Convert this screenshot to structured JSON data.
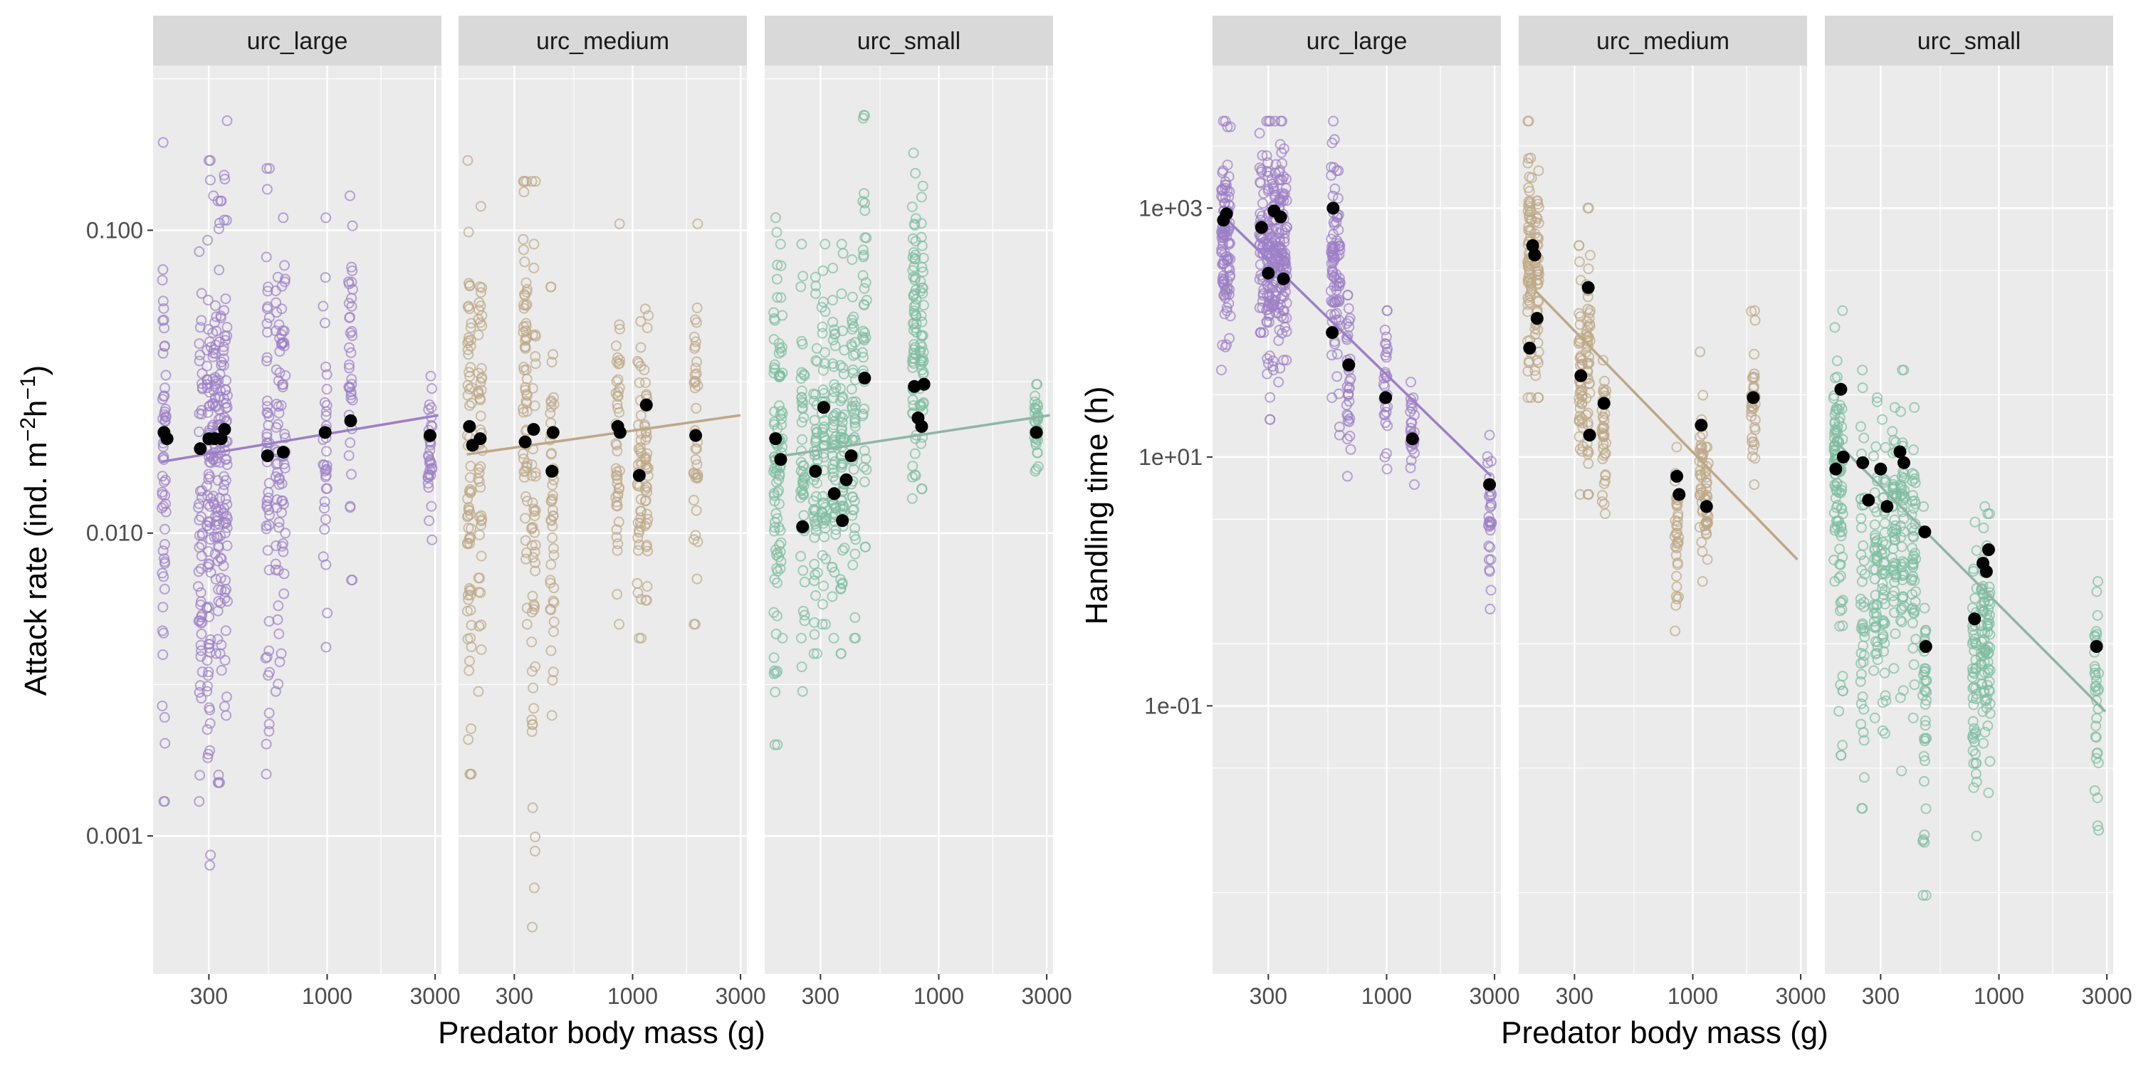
{
  "figure": {
    "left_panel": {
      "xlabel": "Predator body mass (g)",
      "ylabel_main": "Attack rate (ind. m",
      "ylabel_sup1": "−2",
      "ylabel_mid": "h",
      "ylabel_sup2": "−1",
      "ylabel_end": ")"
    },
    "right_panel": {
      "xlabel": "Predator body mass (g)",
      "ylabel": "Handling time (h)"
    }
  },
  "chart_data": [
    {
      "type": "scatter",
      "id": "attack_rate",
      "xlabel": "Predator body mass (g)",
      "ylabel": "Attack rate (ind. m−2h−1)",
      "x_scale": "log10",
      "y_scale": "log10",
      "xlim": [
        170,
        3200
      ],
      "ylim": [
        0.00035,
        0.35
      ],
      "x_ticks": [
        {
          "value": 300,
          "label": "300"
        },
        {
          "value": 1000,
          "label": "1000"
        },
        {
          "value": 3000,
          "label": "3000"
        }
      ],
      "y_ticks": [
        {
          "value": 0.001,
          "label": "0.001"
        },
        {
          "value": 0.01,
          "label": "0.010"
        },
        {
          "value": 0.1,
          "label": "0.100"
        }
      ],
      "grid": true,
      "facets": [
        {
          "name": "urc_large",
          "color": "#9c7fc6",
          "line_color": "#9c7fc6",
          "trend": {
            "x": [
              185,
              3100
            ],
            "y": [
              0.0172,
              0.0245
            ]
          },
          "columns": [
            {
              "x": 190,
              "ymin": 0.0013,
              "ymax": 0.195,
              "n": 60
            },
            {
              "x": 275,
              "ymin": 0.0013,
              "ymax": 0.085,
              "n": 50
            },
            {
              "x": 300,
              "ymin": 0.0008,
              "ymax": 0.17,
              "n": 70
            },
            {
              "x": 318,
              "ymin": 0.004,
              "ymax": 0.13,
              "n": 45
            },
            {
              "x": 335,
              "ymin": 0.0015,
              "ymax": 0.125,
              "n": 55
            },
            {
              "x": 355,
              "ymin": 0.0025,
              "ymax": 0.23,
              "n": 60
            },
            {
              "x": 545,
              "ymin": 0.0016,
              "ymax": 0.16,
              "n": 50
            },
            {
              "x": 605,
              "ymin": 0.003,
              "ymax": 0.07,
              "n": 40
            },
            {
              "x": 640,
              "ymin": 0.004,
              "ymax": 0.11,
              "n": 40
            },
            {
              "x": 980,
              "ymin": 0.0042,
              "ymax": 0.11,
              "n": 35
            },
            {
              "x": 1270,
              "ymin": 0.007,
              "ymax": 0.13,
              "n": 40
            },
            {
              "x": 2850,
              "ymin": 0.0095,
              "ymax": 0.033,
              "n": 35
            }
          ],
          "means": [
            {
              "x": 190,
              "y": 0.0215
            },
            {
              "x": 196,
              "y": 0.0205
            },
            {
              "x": 275,
              "y": 0.019
            },
            {
              "x": 300,
              "y": 0.0205
            },
            {
              "x": 318,
              "y": 0.0205
            },
            {
              "x": 340,
              "y": 0.0205
            },
            {
              "x": 352,
              "y": 0.022
            },
            {
              "x": 545,
              "y": 0.018
            },
            {
              "x": 640,
              "y": 0.0185
            },
            {
              "x": 980,
              "y": 0.0215
            },
            {
              "x": 1270,
              "y": 0.0235
            },
            {
              "x": 2850,
              "y": 0.021
            }
          ]
        },
        {
          "name": "urc_medium",
          "color": "#bda886",
          "line_color": "#bda886",
          "trend": {
            "x": [
              185,
              3000
            ],
            "y": [
              0.0182,
              0.0245
            ]
          },
          "columns": [
            {
              "x": 190,
              "ymin": 0.0016,
              "ymax": 0.17,
              "n": 70
            },
            {
              "x": 212,
              "ymin": 0.003,
              "ymax": 0.12,
              "n": 50
            },
            {
              "x": 335,
              "ymin": 0.005,
              "ymax": 0.145,
              "n": 60
            },
            {
              "x": 365,
              "ymin": 0.0005,
              "ymax": 0.145,
              "n": 50
            },
            {
              "x": 440,
              "ymin": 0.0025,
              "ymax": 0.065,
              "n": 50
            },
            {
              "x": 860,
              "ymin": 0.005,
              "ymax": 0.105,
              "n": 45
            },
            {
              "x": 1070,
              "ymin": 0.0045,
              "ymax": 0.05,
              "n": 40
            },
            {
              "x": 1150,
              "ymin": 0.006,
              "ymax": 0.055,
              "n": 40
            },
            {
              "x": 1900,
              "ymin": 0.005,
              "ymax": 0.105,
              "n": 40
            }
          ],
          "means": [
            {
              "x": 190,
              "y": 0.0225
            },
            {
              "x": 196,
              "y": 0.0195
            },
            {
              "x": 212,
              "y": 0.0205
            },
            {
              "x": 335,
              "y": 0.02
            },
            {
              "x": 365,
              "y": 0.022
            },
            {
              "x": 440,
              "y": 0.016
            },
            {
              "x": 445,
              "y": 0.0215
            },
            {
              "x": 860,
              "y": 0.0225
            },
            {
              "x": 880,
              "y": 0.0215
            },
            {
              "x": 1070,
              "y": 0.0155
            },
            {
              "x": 1150,
              "y": 0.0265
            },
            {
              "x": 1900,
              "y": 0.021
            }
          ]
        },
        {
          "name": "urc_small",
          "color": "#7dbd9f",
          "line_color": "#8fb5a5",
          "trend": {
            "x": [
              185,
              3100
            ],
            "y": [
              0.0178,
              0.0245
            ]
          },
          "columns": [
            {
              "x": 190,
              "ymin": 0.002,
              "ymax": 0.11,
              "n": 60
            },
            {
              "x": 200,
              "ymin": 0.0045,
              "ymax": 0.09,
              "n": 45
            },
            {
              "x": 250,
              "ymin": 0.003,
              "ymax": 0.09,
              "n": 50
            },
            {
              "x": 285,
              "ymin": 0.004,
              "ymax": 0.07,
              "n": 50
            },
            {
              "x": 310,
              "ymin": 0.005,
              "ymax": 0.09,
              "n": 50
            },
            {
              "x": 345,
              "ymin": 0.0045,
              "ymax": 0.075,
              "n": 50
            },
            {
              "x": 375,
              "ymin": 0.004,
              "ymax": 0.09,
              "n": 55
            },
            {
              "x": 420,
              "ymin": 0.0045,
              "ymax": 0.08,
              "n": 50
            },
            {
              "x": 470,
              "ymin": 0.009,
              "ymax": 0.24,
              "n": 40
            },
            {
              "x": 780,
              "ymin": 0.013,
              "ymax": 0.18,
              "n": 60
            },
            {
              "x": 840,
              "ymin": 0.014,
              "ymax": 0.14,
              "n": 45
            },
            {
              "x": 2700,
              "ymin": 0.016,
              "ymax": 0.031,
              "n": 35
            }
          ],
          "means": [
            {
              "x": 190,
              "y": 0.0205
            },
            {
              "x": 200,
              "y": 0.0175
            },
            {
              "x": 250,
              "y": 0.0105
            },
            {
              "x": 285,
              "y": 0.016
            },
            {
              "x": 310,
              "y": 0.026
            },
            {
              "x": 345,
              "y": 0.0135
            },
            {
              "x": 375,
              "y": 0.011
            },
            {
              "x": 390,
              "y": 0.015
            },
            {
              "x": 410,
              "y": 0.018
            },
            {
              "x": 470,
              "y": 0.0325
            },
            {
              "x": 780,
              "y": 0.0305
            },
            {
              "x": 810,
              "y": 0.024
            },
            {
              "x": 840,
              "y": 0.0225
            },
            {
              "x": 860,
              "y": 0.031
            },
            {
              "x": 2700,
              "y": 0.0215
            }
          ]
        }
      ]
    },
    {
      "type": "scatter",
      "id": "handling_time",
      "xlabel": "Predator body mass (g)",
      "ylabel": "Handling time (h)",
      "x_scale": "log10",
      "y_scale": "log10",
      "xlim": [
        170,
        3200
      ],
      "ylim": [
        0.0007,
        14000
      ],
      "x_ticks": [
        {
          "value": 300,
          "label": "300"
        },
        {
          "value": 1000,
          "label": "1000"
        },
        {
          "value": 3000,
          "label": "3000"
        }
      ],
      "y_ticks": [
        {
          "value": 0.1,
          "label": "1e-01"
        },
        {
          "value": 10,
          "label": "1e+01"
        },
        {
          "value": 1000,
          "label": "1e+03"
        }
      ],
      "grid": true,
      "facets": [
        {
          "name": "urc_large",
          "color": "#9c7fc6",
          "line_color": "#9c7fc6",
          "trend": {
            "x": [
              185,
              2900
            ],
            "y": [
              900,
              7
            ]
          },
          "columns": [
            {
              "x": 190,
              "ymin": 50,
              "ymax": 5000,
              "n": 60
            },
            {
              "x": 200,
              "ymin": 80,
              "ymax": 4500,
              "n": 45
            },
            {
              "x": 280,
              "ymin": 100,
              "ymax": 4000,
              "n": 45
            },
            {
              "x": 300,
              "ymin": 20,
              "ymax": 5000,
              "n": 60
            },
            {
              "x": 318,
              "ymin": 50,
              "ymax": 5000,
              "n": 55
            },
            {
              "x": 340,
              "ymin": 40,
              "ymax": 5000,
              "n": 55
            },
            {
              "x": 355,
              "ymin": 60,
              "ymax": 3000,
              "n": 45
            },
            {
              "x": 580,
              "ymin": 30,
              "ymax": 5000,
              "n": 50
            },
            {
              "x": 610,
              "ymin": 15,
              "ymax": 2000,
              "n": 40
            },
            {
              "x": 680,
              "ymin": 7,
              "ymax": 200,
              "n": 35
            },
            {
              "x": 990,
              "ymin": 8,
              "ymax": 150,
              "n": 30
            },
            {
              "x": 1300,
              "ymin": 6,
              "ymax": 40,
              "n": 30
            },
            {
              "x": 2850,
              "ymin": 0.6,
              "ymax": 15,
              "n": 30
            }
          ],
          "means": [
            {
              "x": 190,
              "y": 800
            },
            {
              "x": 196,
              "y": 900
            },
            {
              "x": 280,
              "y": 700
            },
            {
              "x": 300,
              "y": 300
            },
            {
              "x": 318,
              "y": 950
            },
            {
              "x": 340,
              "y": 850
            },
            {
              "x": 350,
              "y": 270
            },
            {
              "x": 580,
              "y": 1000
            },
            {
              "x": 575,
              "y": 100
            },
            {
              "x": 680,
              "y": 55
            },
            {
              "x": 990,
              "y": 30
            },
            {
              "x": 1300,
              "y": 14
            },
            {
              "x": 2850,
              "y": 6
            }
          ]
        },
        {
          "name": "urc_medium",
          "color": "#bda886",
          "line_color": "#bda886",
          "trend": {
            "x": [
              200,
              2900
            ],
            "y": [
              220,
              1.5
            ]
          },
          "columns": [
            {
              "x": 190,
              "ymin": 30,
              "ymax": 5000,
              "n": 70
            },
            {
              "x": 205,
              "ymin": 30,
              "ymax": 2000,
              "n": 50
            },
            {
              "x": 320,
              "ymin": 5,
              "ymax": 500,
              "n": 45
            },
            {
              "x": 345,
              "ymin": 5,
              "ymax": 1000,
              "n": 50
            },
            {
              "x": 405,
              "ymin": 3.5,
              "ymax": 60,
              "n": 40
            },
            {
              "x": 850,
              "ymin": 0.4,
              "ymax": 12,
              "n": 35
            },
            {
              "x": 1090,
              "ymin": 1,
              "ymax": 70,
              "n": 35
            },
            {
              "x": 1150,
              "ymin": 1.5,
              "ymax": 12,
              "n": 30
            },
            {
              "x": 1850,
              "ymin": 6,
              "ymax": 150,
              "n": 35
            }
          ],
          "means": [
            {
              "x": 190,
              "y": 75
            },
            {
              "x": 196,
              "y": 500
            },
            {
              "x": 200,
              "y": 420
            },
            {
              "x": 205,
              "y": 130
            },
            {
              "x": 320,
              "y": 45
            },
            {
              "x": 345,
              "y": 230
            },
            {
              "x": 350,
              "y": 15
            },
            {
              "x": 405,
              "y": 27
            },
            {
              "x": 850,
              "y": 7
            },
            {
              "x": 870,
              "y": 5
            },
            {
              "x": 1090,
              "y": 18
            },
            {
              "x": 1150,
              "y": 4
            },
            {
              "x": 1850,
              "y": 30
            }
          ]
        },
        {
          "name": "urc_small",
          "color": "#7dbd9f",
          "line_color": "#8fb5a5",
          "trend": {
            "x": [
              185,
              2950
            ],
            "y": [
              14,
              0.09
            ]
          },
          "columns": [
            {
              "x": 190,
              "ymin": 1,
              "ymax": 110,
              "n": 60
            },
            {
              "x": 200,
              "ymin": 0.04,
              "ymax": 150,
              "n": 50
            },
            {
              "x": 250,
              "ymin": 0.015,
              "ymax": 50,
              "n": 45
            },
            {
              "x": 285,
              "ymin": 0.08,
              "ymax": 30,
              "n": 45
            },
            {
              "x": 310,
              "ymin": 0.06,
              "ymax": 20,
              "n": 45
            },
            {
              "x": 345,
              "ymin": 0.2,
              "ymax": 25,
              "n": 45
            },
            {
              "x": 375,
              "ymin": 0.03,
              "ymax": 50,
              "n": 45
            },
            {
              "x": 420,
              "ymin": 0.08,
              "ymax": 25,
              "n": 45
            },
            {
              "x": 470,
              "ymin": 0.003,
              "ymax": 4,
              "n": 40
            },
            {
              "x": 780,
              "ymin": 0.009,
              "ymax": 3,
              "n": 50
            },
            {
              "x": 850,
              "ymin": 0.05,
              "ymax": 4,
              "n": 45
            },
            {
              "x": 900,
              "ymin": 0.02,
              "ymax": 3.5,
              "n": 40
            },
            {
              "x": 2700,
              "ymin": 0.01,
              "ymax": 1,
              "n": 35
            }
          ],
          "means": [
            {
              "x": 190,
              "y": 8
            },
            {
              "x": 200,
              "y": 35
            },
            {
              "x": 205,
              "y": 10
            },
            {
              "x": 250,
              "y": 9
            },
            {
              "x": 265,
              "y": 4.5
            },
            {
              "x": 300,
              "y": 8
            },
            {
              "x": 320,
              "y": 4
            },
            {
              "x": 365,
              "y": 11
            },
            {
              "x": 380,
              "y": 9
            },
            {
              "x": 470,
              "y": 2.5
            },
            {
              "x": 475,
              "y": 0.3
            },
            {
              "x": 780,
              "y": 0.5
            },
            {
              "x": 850,
              "y": 1.4
            },
            {
              "x": 880,
              "y": 1.2
            },
            {
              "x": 900,
              "y": 1.8
            },
            {
              "x": 2700,
              "y": 0.3
            }
          ]
        }
      ]
    }
  ]
}
